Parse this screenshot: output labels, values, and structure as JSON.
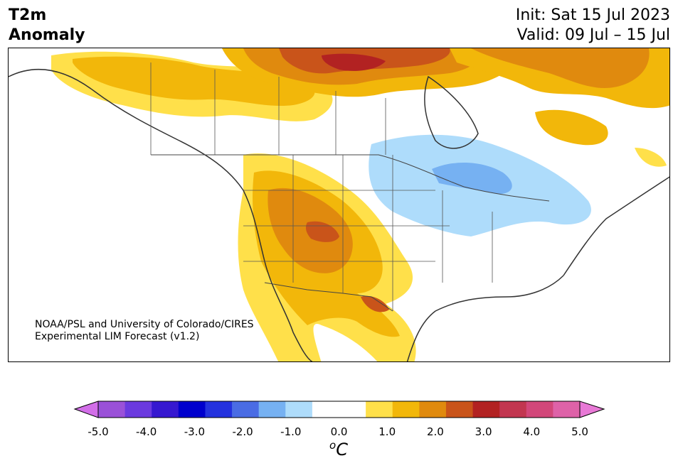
{
  "header": {
    "title_line1": "T2m",
    "title_line2": "Anomaly",
    "init": "Init: Sat 15 Jul 2023",
    "valid": "Valid: 09 Jul – 15 Jul"
  },
  "credit": {
    "line1": "NOAA/PSL and University of Colorado/CIRES",
    "line2": "Experimental LIM Forecast (v1.2)"
  },
  "colorbar": {
    "unit": "C",
    "unit_prefix": "o",
    "ticks": [
      "-5.0",
      "-4.0",
      "-3.0",
      "-2.0",
      "-1.0",
      "0.0",
      "1.0",
      "2.0",
      "3.0",
      "4.0",
      "5.0"
    ],
    "colors": [
      "#d26ee8",
      "#9a51d8",
      "#6b3adf",
      "#3618d0",
      "#0000cd",
      "#2432de",
      "#4a6ce4",
      "#76b1f2",
      "#aedcfb",
      "#ffffff",
      "#ffffff",
      "#ffe04a",
      "#f2b70a",
      "#e08a0e",
      "#c9541a",
      "#b22222",
      "#c23650",
      "#d2477a",
      "#de62a8",
      "#e879d6"
    ]
  },
  "anomaly_colors": {
    "warm_1": "#ffe04a",
    "warm_2": "#f2b70a",
    "warm_3": "#e08a0e",
    "warm_4": "#c9541a",
    "warm_5": "#b22222",
    "cool_1": "#aedcfb",
    "cool_2": "#76b1f2"
  }
}
